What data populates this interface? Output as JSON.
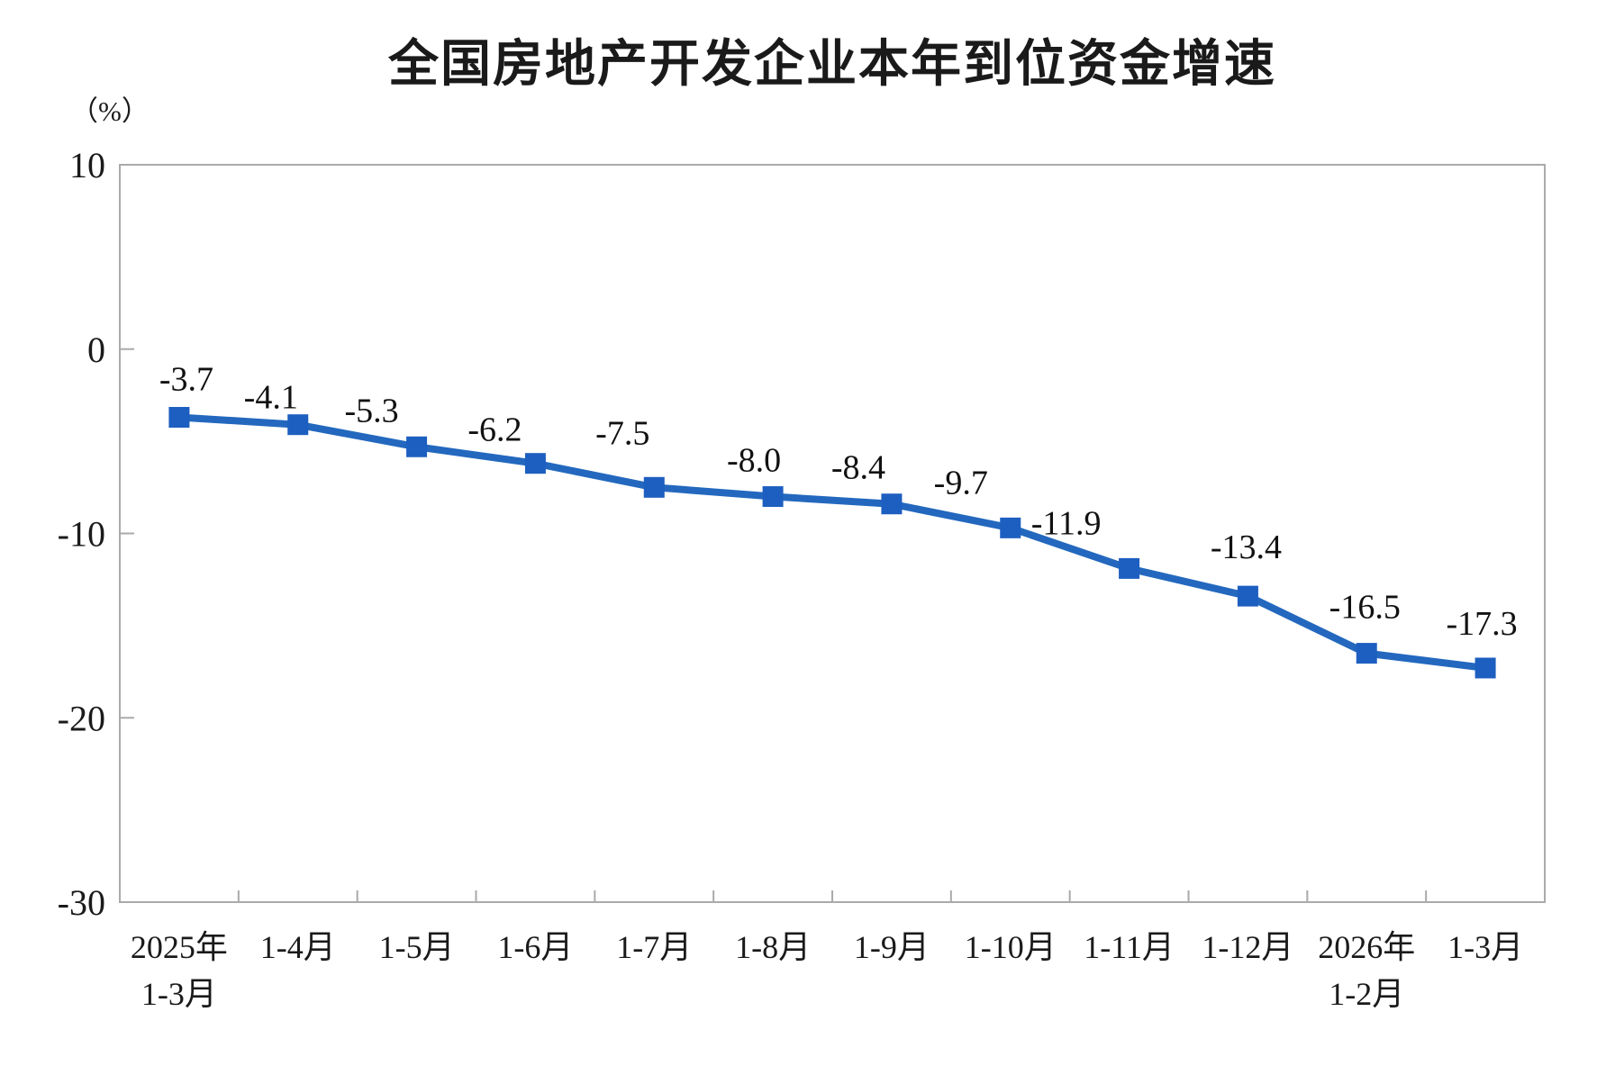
{
  "chart_data": {
    "type": "line",
    "title": "全国房地产开发企业本年到位资金增速",
    "unit_label": "（%）",
    "categories": [
      [
        "2025年",
        "1-3月"
      ],
      [
        "1-4月"
      ],
      [
        "1-5月"
      ],
      [
        "1-6月"
      ],
      [
        "1-7月"
      ],
      [
        "1-8月"
      ],
      [
        "1-9月"
      ],
      [
        "1-10月"
      ],
      [
        "1-11月"
      ],
      [
        "1-12月"
      ],
      [
        "2026年",
        "1-2月"
      ],
      [
        "1-3月"
      ]
    ],
    "values": [
      -3.7,
      -4.1,
      -5.3,
      -6.2,
      -7.5,
      -8.0,
      -8.4,
      -9.7,
      -11.9,
      -13.4,
      -16.5,
      -17.3
    ],
    "data_labels": [
      "-3.7",
      "-4.1",
      "-5.3",
      "-6.2",
      "-7.5",
      "-8.0",
      "-8.4",
      "-9.7",
      "-11.9",
      "-13.4",
      "-16.5",
      "-17.3"
    ],
    "xlabel": "",
    "ylabel": "（%）",
    "ylim": [
      -30,
      10
    ],
    "yticks": [
      10,
      0,
      -10,
      -20,
      -30
    ],
    "grid": false,
    "legend": "none",
    "marker": "square",
    "colors": {
      "line": "#2368be",
      "marker": "#1d5fc0",
      "text": "#1a1a1a",
      "axis": "#aaaaaa"
    }
  }
}
